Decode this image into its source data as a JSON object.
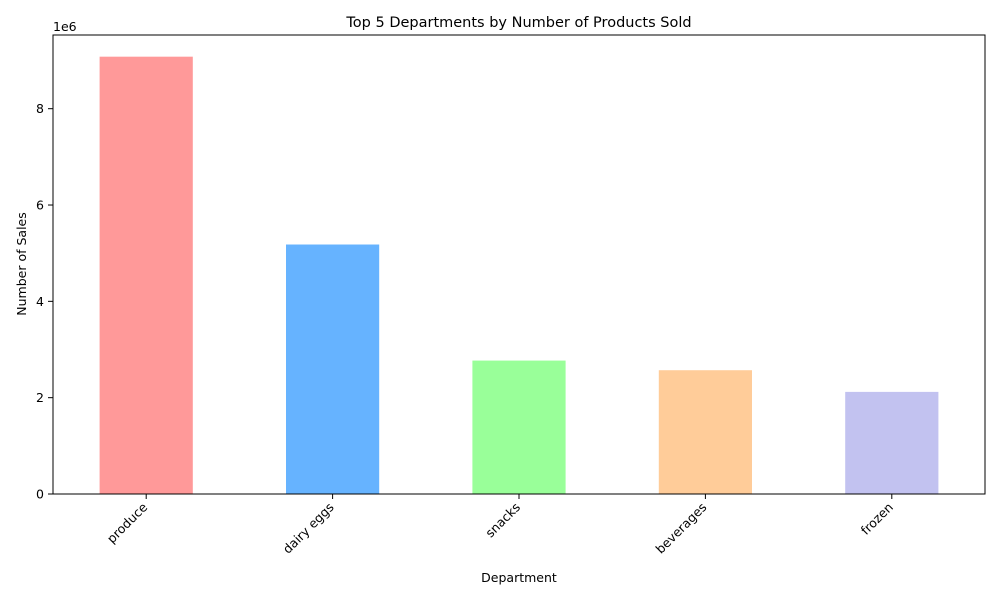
{
  "chart_data": {
    "type": "bar",
    "title": "Top 5 Departments by Number of Products Sold",
    "xlabel": "Department",
    "ylabel": "Number of Sales",
    "y_scale_label": "1e6",
    "categories": [
      "produce",
      "dairy eggs",
      "snacks",
      "beverages",
      "frozen"
    ],
    "values": [
      9080000,
      5180000,
      2770000,
      2570000,
      2120000
    ],
    "colors": [
      "#ff9999",
      "#66b3ff",
      "#99ff99",
      "#ffcc99",
      "#c2c2f0"
    ],
    "ylim": [
      0,
      9530000
    ],
    "yticks": [
      0,
      2000000,
      4000000,
      6000000,
      8000000
    ],
    "ytick_labels": [
      "0",
      "2",
      "4",
      "6",
      "8"
    ],
    "grid": false,
    "legend": "none"
  }
}
